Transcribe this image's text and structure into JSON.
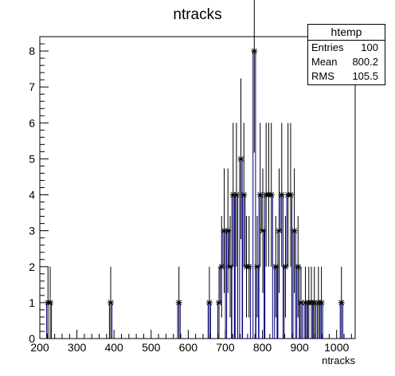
{
  "chart_data": {
    "type": "histogram",
    "title": "ntracks",
    "xlabel": "ntracks",
    "ylabel": "",
    "xlim": [
      200,
      1050
    ],
    "ylim": [
      0,
      8.4
    ],
    "bin_width": 6.875,
    "x_ticks": [
      200,
      300,
      400,
      500,
      600,
      700,
      800,
      900,
      1000
    ],
    "y_ticks": [
      0,
      1,
      2,
      3,
      4,
      5,
      6,
      7,
      8
    ],
    "marker": "asterisk",
    "line_color": "#000080",
    "grid": false,
    "legend": "top-right",
    "bins": [
      {
        "x": 222,
        "y": 1
      },
      {
        "x": 228,
        "y": 1
      },
      {
        "x": 391,
        "y": 1
      },
      {
        "x": 575,
        "y": 1
      },
      {
        "x": 657,
        "y": 1
      },
      {
        "x": 683,
        "y": 1
      },
      {
        "x": 690,
        "y": 2
      },
      {
        "x": 697,
        "y": 3
      },
      {
        "x": 707,
        "y": 3
      },
      {
        "x": 713,
        "y": 2
      },
      {
        "x": 721,
        "y": 4
      },
      {
        "x": 730,
        "y": 4
      },
      {
        "x": 742,
        "y": 5
      },
      {
        "x": 750,
        "y": 4
      },
      {
        "x": 757,
        "y": 2
      },
      {
        "x": 764,
        "y": 2
      },
      {
        "x": 778,
        "y": 8
      },
      {
        "x": 786,
        "y": 2
      },
      {
        "x": 794,
        "y": 4
      },
      {
        "x": 801,
        "y": 3
      },
      {
        "x": 810,
        "y": 4
      },
      {
        "x": 817,
        "y": 4
      },
      {
        "x": 824,
        "y": 4
      },
      {
        "x": 836,
        "y": 2
      },
      {
        "x": 845,
        "y": 3
      },
      {
        "x": 852,
        "y": 4
      },
      {
        "x": 862,
        "y": 2
      },
      {
        "x": 869,
        "y": 4
      },
      {
        "x": 876,
        "y": 4
      },
      {
        "x": 886,
        "y": 3
      },
      {
        "x": 896,
        "y": 2
      },
      {
        "x": 904,
        "y": 1
      },
      {
        "x": 916,
        "y": 1
      },
      {
        "x": 925,
        "y": 1
      },
      {
        "x": 932,
        "y": 1
      },
      {
        "x": 940,
        "y": 1
      },
      {
        "x": 951,
        "y": 1
      },
      {
        "x": 959,
        "y": 1
      },
      {
        "x": 1013,
        "y": 1
      }
    ]
  },
  "stats": {
    "title": "htemp",
    "entries_label": "Entries",
    "entries_value": "100",
    "mean_label": "Mean",
    "mean_value": "800.2",
    "rms_label": "RMS",
    "rms_value": "105.5"
  }
}
